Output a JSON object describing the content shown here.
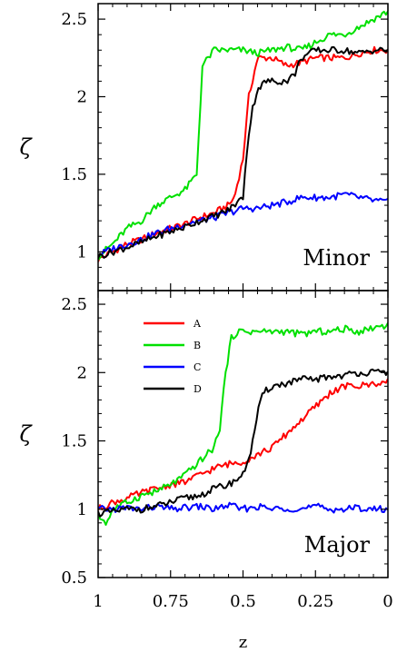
{
  "chart_data": {
    "type": "line",
    "xlabel": "z",
    "xlim": [
      1,
      0
    ],
    "xticks": [
      1,
      0.75,
      0.5,
      0.25,
      0
    ],
    "xtick_labels": [
      "1",
      "0.75",
      "0.5",
      "0.25",
      "0"
    ],
    "x_reversed": true,
    "legend": {
      "panel": "Major",
      "placement": "top-left"
    },
    "series_styles": [
      {
        "name": "A",
        "color": "#ff0000"
      },
      {
        "name": "B",
        "color": "#00e000"
      },
      {
        "name": "C",
        "color": "#0000ff"
      },
      {
        "name": "D",
        "color": "#000000"
      }
    ],
    "panels": [
      {
        "label": "Minor",
        "ylabel": "ζ",
        "ylim": [
          0.75,
          2.6
        ],
        "yticks": [
          1,
          1.5,
          2,
          2.5
        ],
        "ytick_labels": [
          "1",
          "1.5",
          "2",
          "2.5"
        ],
        "series": [
          {
            "name": "A",
            "x": [
              1,
              0.95,
              0.9,
              0.85,
              0.8,
              0.75,
              0.7,
              0.65,
              0.6,
              0.55,
              0.53,
              0.5,
              0.48,
              0.45,
              0.4,
              0.35,
              0.3,
              0.25,
              0.2,
              0.15,
              0.1,
              0.05,
              0
            ],
            "y": [
              0.95,
              1.0,
              1.05,
              1.08,
              1.12,
              1.15,
              1.18,
              1.22,
              1.25,
              1.3,
              1.35,
              1.6,
              2.0,
              2.25,
              2.25,
              2.2,
              2.22,
              2.25,
              2.25,
              2.25,
              2.28,
              2.3,
              2.3
            ]
          },
          {
            "name": "B",
            "x": [
              1,
              0.95,
              0.9,
              0.85,
              0.8,
              0.75,
              0.7,
              0.68,
              0.66,
              0.64,
              0.6,
              0.55,
              0.5,
              0.45,
              0.4,
              0.35,
              0.3,
              0.25,
              0.2,
              0.15,
              0.1,
              0.05,
              0
            ],
            "y": [
              0.97,
              1.05,
              1.15,
              1.2,
              1.3,
              1.35,
              1.4,
              1.45,
              1.5,
              2.2,
              2.3,
              2.3,
              2.3,
              2.28,
              2.3,
              2.32,
              2.3,
              2.35,
              2.4,
              2.4,
              2.45,
              2.5,
              2.55
            ]
          },
          {
            "name": "C",
            "x": [
              1,
              0.95,
              0.9,
              0.85,
              0.8,
              0.75,
              0.7,
              0.65,
              0.6,
              0.55,
              0.5,
              0.45,
              0.4,
              0.35,
              0.3,
              0.25,
              0.2,
              0.15,
              0.1,
              0.05,
              0
            ],
            "y": [
              0.98,
              1.02,
              1.05,
              1.08,
              1.12,
              1.15,
              1.18,
              1.2,
              1.22,
              1.25,
              1.28,
              1.28,
              1.3,
              1.32,
              1.35,
              1.35,
              1.35,
              1.37,
              1.35,
              1.33,
              1.32
            ]
          },
          {
            "name": "D",
            "x": [
              1,
              0.95,
              0.9,
              0.85,
              0.8,
              0.75,
              0.7,
              0.65,
              0.6,
              0.55,
              0.5,
              0.49,
              0.47,
              0.45,
              0.42,
              0.4,
              0.35,
              0.32,
              0.3,
              0.25,
              0.2,
              0.15,
              0.1,
              0.05,
              0
            ],
            "y": [
              0.97,
              1.0,
              1.03,
              1.06,
              1.1,
              1.13,
              1.16,
              1.2,
              1.23,
              1.27,
              1.35,
              1.6,
              1.9,
              2.05,
              2.1,
              2.1,
              2.1,
              2.15,
              2.25,
              2.3,
              2.3,
              2.3,
              2.28,
              2.3,
              2.3
            ]
          }
        ]
      },
      {
        "label": "Major",
        "ylabel": "ζ",
        "ylim": [
          0.5,
          2.6
        ],
        "yticks": [
          0.5,
          1,
          1.5,
          2,
          2.5
        ],
        "ytick_labels": [
          "0.5",
          "1",
          "1.5",
          "2",
          "2.5"
        ],
        "series": [
          {
            "name": "A",
            "x": [
              1,
              0.95,
              0.9,
              0.85,
              0.8,
              0.75,
              0.7,
              0.65,
              0.6,
              0.55,
              0.5,
              0.45,
              0.4,
              0.35,
              0.3,
              0.25,
              0.2,
              0.15,
              0.1,
              0.05,
              0
            ],
            "y": [
              1.0,
              1.05,
              1.08,
              1.12,
              1.15,
              1.18,
              1.2,
              1.25,
              1.3,
              1.33,
              1.35,
              1.4,
              1.45,
              1.55,
              1.65,
              1.75,
              1.85,
              1.9,
              1.9,
              1.92,
              1.93
            ]
          },
          {
            "name": "B",
            "x": [
              1,
              0.97,
              0.95,
              0.9,
              0.85,
              0.8,
              0.75,
              0.7,
              0.65,
              0.6,
              0.58,
              0.56,
              0.54,
              0.52,
              0.5,
              0.45,
              0.4,
              0.35,
              0.3,
              0.25,
              0.2,
              0.15,
              0.1,
              0.05,
              0
            ],
            "y": [
              0.95,
              0.9,
              1.0,
              1.05,
              1.1,
              1.13,
              1.18,
              1.25,
              1.35,
              1.45,
              1.6,
              2.0,
              2.25,
              2.3,
              2.3,
              2.3,
              2.3,
              2.3,
              2.28,
              2.3,
              2.3,
              2.32,
              2.3,
              2.33,
              2.35
            ]
          },
          {
            "name": "C",
            "x": [
              1,
              0.95,
              0.9,
              0.85,
              0.8,
              0.75,
              0.7,
              0.65,
              0.6,
              0.55,
              0.5,
              0.45,
              0.4,
              0.35,
              0.3,
              0.25,
              0.2,
              0.15,
              0.1,
              0.05,
              0
            ],
            "y": [
              1.0,
              1.0,
              1.01,
              1.0,
              1.02,
              1.0,
              1.01,
              1.02,
              1.0,
              1.03,
              1.0,
              1.02,
              1.0,
              1.01,
              1.0,
              1.02,
              1.0,
              1.0,
              1.01,
              1.0,
              1.0
            ]
          },
          {
            "name": "D",
            "x": [
              1,
              0.95,
              0.9,
              0.85,
              0.8,
              0.75,
              0.7,
              0.65,
              0.6,
              0.55,
              0.5,
              0.47,
              0.45,
              0.43,
              0.4,
              0.35,
              0.3,
              0.25,
              0.2,
              0.15,
              0.1,
              0.05,
              0
            ],
            "y": [
              0.97,
              0.98,
              1.0,
              1.0,
              1.02,
              1.05,
              1.08,
              1.1,
              1.15,
              1.18,
              1.25,
              1.45,
              1.7,
              1.85,
              1.9,
              1.92,
              1.95,
              1.95,
              1.97,
              1.98,
              2.0,
              2.0,
              2.0
            ]
          }
        ]
      }
    ]
  }
}
